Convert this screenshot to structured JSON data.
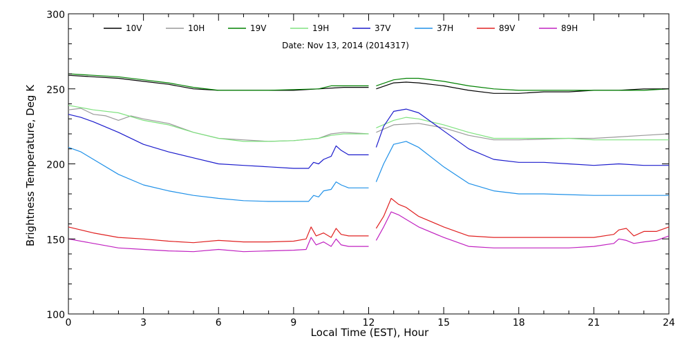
{
  "chart_data": {
    "type": "line",
    "subtitle": "Date: Nov 13, 2014 (2014317)",
    "xlabel": "Local Time (EST), Hour",
    "ylabel": "Brightness Temperature, Deg K",
    "xlim": [
      0,
      24
    ],
    "ylim": [
      100,
      300
    ],
    "xticks": [
      "0",
      "3",
      "6",
      "9",
      "12",
      "15",
      "18",
      "21",
      "24"
    ],
    "yticks": [
      "100",
      "150",
      "200",
      "250",
      "300"
    ],
    "xtick_values": [
      0,
      3,
      6,
      9,
      12,
      15,
      18,
      21,
      24
    ],
    "ytick_values": [
      100,
      150,
      200,
      250,
      300
    ],
    "grid": false,
    "legend_position": "top",
    "series": [
      {
        "name": "10V",
        "color": "#000000",
        "segments": [
          [
            [
              0,
              259
            ],
            [
              1,
              258
            ],
            [
              2,
              257
            ],
            [
              3,
              255
            ],
            [
              4,
              253
            ],
            [
              5,
              250
            ],
            [
              6,
              249
            ],
            [
              7,
              249
            ],
            [
              8,
              249
            ],
            [
              9,
              249
            ],
            [
              10,
              250
            ],
            [
              11,
              251
            ],
            [
              12,
              251
            ]
          ],
          [
            [
              12.3,
              250
            ],
            [
              13,
              254
            ],
            [
              13.5,
              254.5
            ],
            [
              14,
              254
            ],
            [
              15,
              252
            ],
            [
              16,
              249
            ],
            [
              17,
              247
            ],
            [
              18,
              247
            ],
            [
              19,
              248
            ],
            [
              20,
              248
            ],
            [
              21,
              249
            ],
            [
              22,
              249
            ],
            [
              23,
              250
            ],
            [
              24,
              250
            ]
          ]
        ]
      },
      {
        "name": "10H",
        "color": "#999999",
        "segments": [
          [
            [
              0,
              236
            ],
            [
              0.5,
              237
            ],
            [
              1,
              233
            ],
            [
              1.5,
              232
            ],
            [
              2,
              229
            ],
            [
              2.5,
              232
            ],
            [
              3,
              230
            ],
            [
              4,
              227
            ],
            [
              5,
              221
            ],
            [
              6,
              217
            ],
            [
              7,
              216
            ],
            [
              8,
              215
            ],
            [
              9,
              215.5
            ],
            [
              10,
              217
            ],
            [
              10.5,
              220
            ],
            [
              11,
              221
            ],
            [
              12,
              220
            ]
          ],
          [
            [
              12.3,
              221
            ],
            [
              13,
              226
            ],
            [
              14,
              227
            ],
            [
              15,
              224
            ],
            [
              16,
              219
            ],
            [
              17,
              216
            ],
            [
              18,
              216
            ],
            [
              19,
              216.5
            ],
            [
              20,
              217
            ],
            [
              21,
              217
            ],
            [
              22,
              218
            ],
            [
              23,
              219
            ],
            [
              24,
              220
            ]
          ]
        ]
      },
      {
        "name": "19V",
        "color": "#008000",
        "segments": [
          [
            [
              0,
              260
            ],
            [
              1,
              259
            ],
            [
              2,
              258
            ],
            [
              3,
              256
            ],
            [
              4,
              254
            ],
            [
              5,
              251
            ],
            [
              6,
              249
            ],
            [
              7,
              249
            ],
            [
              8,
              249
            ],
            [
              9,
              249.5
            ],
            [
              10,
              250
            ],
            [
              10.5,
              252
            ],
            [
              11,
              252
            ],
            [
              12,
              252
            ]
          ],
          [
            [
              12.3,
              252
            ],
            [
              13,
              256
            ],
            [
              13.5,
              257
            ],
            [
              14,
              257
            ],
            [
              15,
              255
            ],
            [
              16,
              252
            ],
            [
              17,
              250
            ],
            [
              18,
              249
            ],
            [
              19,
              249
            ],
            [
              20,
              249
            ],
            [
              21,
              249
            ],
            [
              22,
              249
            ],
            [
              23,
              249
            ],
            [
              24,
              250
            ]
          ]
        ]
      },
      {
        "name": "19H",
        "color": "#7ee27e",
        "segments": [
          [
            [
              0,
              239
            ],
            [
              1,
              236
            ],
            [
              2,
              234
            ],
            [
              3,
              229
            ],
            [
              4,
              226
            ],
            [
              5,
              221
            ],
            [
              6,
              217
            ],
            [
              7,
              215
            ],
            [
              8,
              215
            ],
            [
              9,
              215.5
            ],
            [
              10,
              217
            ],
            [
              10.5,
              219
            ],
            [
              11,
              220
            ],
            [
              12,
              220
            ]
          ],
          [
            [
              12.3,
              224
            ],
            [
              13,
              229
            ],
            [
              13.5,
              231
            ],
            [
              14,
              230
            ],
            [
              15,
              226
            ],
            [
              16,
              221
            ],
            [
              17,
              217
            ],
            [
              18,
              217
            ],
            [
              19,
              217
            ],
            [
              20,
              217
            ],
            [
              21,
              216
            ],
            [
              22,
              216
            ],
            [
              23,
              216
            ],
            [
              24,
              216
            ]
          ]
        ]
      },
      {
        "name": "37V",
        "color": "#1a1acc",
        "segments": [
          [
            [
              0,
              233
            ],
            [
              0.5,
              231
            ],
            [
              1,
              228
            ],
            [
              2,
              221
            ],
            [
              3,
              213
            ],
            [
              4,
              208
            ],
            [
              5,
              204
            ],
            [
              6,
              200
            ],
            [
              7,
              199
            ],
            [
              8,
              198
            ],
            [
              9,
              197
            ],
            [
              9.6,
              197
            ],
            [
              9.8,
              201
            ],
            [
              10,
              200
            ],
            [
              10.2,
              203
            ],
            [
              10.5,
              205
            ],
            [
              10.7,
              212
            ],
            [
              10.9,
              209
            ],
            [
              11.2,
              206
            ],
            [
              11.5,
              206
            ],
            [
              12,
              206
            ]
          ],
          [
            [
              12.3,
              211
            ],
            [
              12.6,
              225
            ],
            [
              13,
              235
            ],
            [
              13.5,
              236.5
            ],
            [
              14,
              234
            ],
            [
              15,
              222
            ],
            [
              16,
              210
            ],
            [
              17,
              203
            ],
            [
              18,
              201
            ],
            [
              19,
              201
            ],
            [
              20,
              200
            ],
            [
              21,
              199
            ],
            [
              22,
              200
            ],
            [
              23,
              199
            ],
            [
              24,
              199
            ]
          ]
        ]
      },
      {
        "name": "37H",
        "color": "#1e90e8",
        "segments": [
          [
            [
              0,
              211
            ],
            [
              0.5,
              208
            ],
            [
              1,
              203
            ],
            [
              2,
              193
            ],
            [
              3,
              186
            ],
            [
              4,
              182
            ],
            [
              5,
              179
            ],
            [
              6,
              177
            ],
            [
              7,
              175.5
            ],
            [
              8,
              175
            ],
            [
              9,
              175
            ],
            [
              9.6,
              175
            ],
            [
              9.8,
              179
            ],
            [
              10,
              178
            ],
            [
              10.2,
              182
            ],
            [
              10.5,
              183
            ],
            [
              10.7,
              188
            ],
            [
              10.9,
              186
            ],
            [
              11.2,
              184
            ],
            [
              11.5,
              184
            ],
            [
              12,
              184
            ]
          ],
          [
            [
              12.3,
              188
            ],
            [
              12.6,
              200
            ],
            [
              13,
              213
            ],
            [
              13.5,
              215
            ],
            [
              14,
              211
            ],
            [
              15,
              198
            ],
            [
              16,
              187
            ],
            [
              17,
              182
            ],
            [
              18,
              180
            ],
            [
              19,
              180
            ],
            [
              20,
              179.5
            ],
            [
              21,
              179
            ],
            [
              22,
              179
            ],
            [
              23,
              179
            ],
            [
              24,
              179
            ]
          ]
        ]
      },
      {
        "name": "89V",
        "color": "#e02020",
        "segments": [
          [
            [
              0,
              158
            ],
            [
              1,
              154
            ],
            [
              2,
              151
            ],
            [
              3,
              150
            ],
            [
              4,
              148.5
            ],
            [
              5,
              147.5
            ],
            [
              6,
              149
            ],
            [
              7,
              148
            ],
            [
              8,
              148
            ],
            [
              9,
              148.5
            ],
            [
              9.5,
              150
            ],
            [
              9.7,
              158
            ],
            [
              9.9,
              152
            ],
            [
              10.2,
              154
            ],
            [
              10.5,
              151
            ],
            [
              10.7,
              157
            ],
            [
              10.9,
              153
            ],
            [
              11.2,
              152
            ],
            [
              11.5,
              152
            ],
            [
              12,
              152
            ]
          ],
          [
            [
              12.3,
              157
            ],
            [
              12.6,
              165
            ],
            [
              12.9,
              177
            ],
            [
              13.2,
              173
            ],
            [
              13.5,
              171
            ],
            [
              14,
              165
            ],
            [
              15,
              158
            ],
            [
              16,
              152
            ],
            [
              17,
              151
            ],
            [
              18,
              151
            ],
            [
              19,
              151
            ],
            [
              20,
              151
            ],
            [
              21,
              151
            ],
            [
              21.8,
              153
            ],
            [
              22,
              156
            ],
            [
              22.3,
              157
            ],
            [
              22.6,
              152
            ],
            [
              23,
              155
            ],
            [
              23.5,
              155
            ],
            [
              24,
              158
            ]
          ]
        ]
      },
      {
        "name": "89H",
        "color": "#c020c0",
        "segments": [
          [
            [
              0,
              150
            ],
            [
              1,
              147
            ],
            [
              2,
              144
            ],
            [
              3,
              143
            ],
            [
              4,
              142
            ],
            [
              5,
              141.5
            ],
            [
              6,
              143
            ],
            [
              7,
              141.5
            ],
            [
              8,
              142
            ],
            [
              9,
              142.5
            ],
            [
              9.5,
              143
            ],
            [
              9.7,
              151
            ],
            [
              9.9,
              146
            ],
            [
              10.2,
              148
            ],
            [
              10.5,
              145
            ],
            [
              10.7,
              150
            ],
            [
              10.9,
              146
            ],
            [
              11.2,
              145
            ],
            [
              11.5,
              145
            ],
            [
              12,
              145
            ]
          ],
          [
            [
              12.3,
              149
            ],
            [
              12.6,
              158
            ],
            [
              12.9,
              168
            ],
            [
              13.2,
              166
            ],
            [
              13.5,
              163
            ],
            [
              14,
              158
            ],
            [
              15,
              151
            ],
            [
              16,
              145
            ],
            [
              17,
              144
            ],
            [
              18,
              144
            ],
            [
              19,
              144
            ],
            [
              20,
              144
            ],
            [
              21,
              145
            ],
            [
              21.8,
              147
            ],
            [
              22,
              150
            ],
            [
              22.3,
              149
            ],
            [
              22.6,
              147
            ],
            [
              23,
              148
            ],
            [
              23.5,
              149
            ],
            [
              24,
              152
            ]
          ]
        ]
      }
    ]
  }
}
